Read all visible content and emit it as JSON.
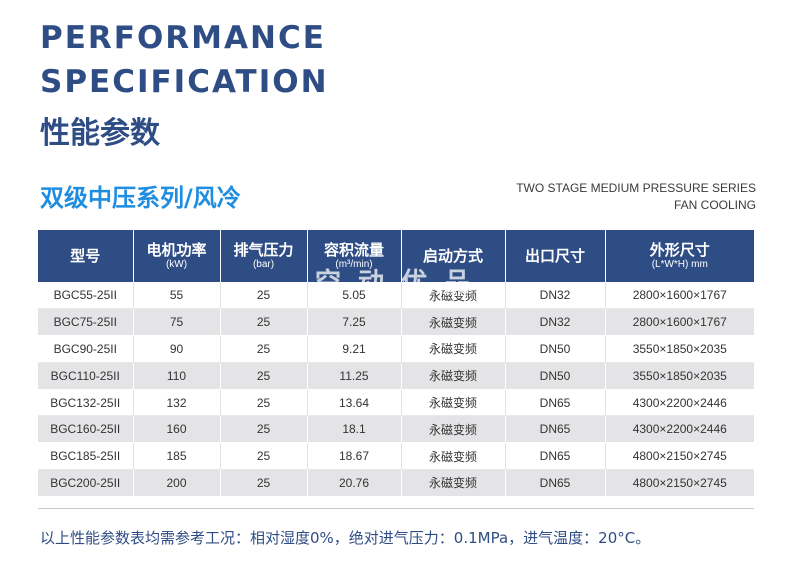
{
  "header": {
    "title_line1": "PERFORMANCE",
    "title_line2": "SPECIFICATION",
    "title_cn": "性能参数"
  },
  "series": {
    "title_cn": "双级中压系列/风冷",
    "en_line1": "TWO STAGE MEDIUM PRESSURE SERIES",
    "en_line2": "FAN COOLING"
  },
  "table": {
    "headers": [
      {
        "main": "型号",
        "sub": ""
      },
      {
        "main": "电机功率",
        "sub": "(kW)"
      },
      {
        "main": "排气压力",
        "sub": "(bar)"
      },
      {
        "main": "容积流量",
        "sub": "(m³/min)"
      },
      {
        "main": "启动方式",
        "sub": ""
      },
      {
        "main": "出口尺寸",
        "sub": ""
      },
      {
        "main": "外形尺寸",
        "sub": "(L*W*H) mm"
      }
    ],
    "rows": [
      [
        "BGC55-25II",
        "55",
        "25",
        "5.05",
        "永磁变频",
        "DN32",
        "2800×1600×1767"
      ],
      [
        "BGC75-25II",
        "75",
        "25",
        "7.25",
        "永磁变频",
        "DN32",
        "2800×1600×1767"
      ],
      [
        "BGC90-25II",
        "90",
        "25",
        "9.21",
        "永磁变频",
        "DN50",
        "3550×1850×2035"
      ],
      [
        "BGC110-25II",
        "110",
        "25",
        "11.25",
        "永磁变频",
        "DN50",
        "3550×1850×2035"
      ],
      [
        "BGC132-25II",
        "132",
        "25",
        "13.64",
        "永磁变频",
        "DN65",
        "4300×2200×2446"
      ],
      [
        "BGC160-25II",
        "160",
        "25",
        "18.1",
        "永磁变频",
        "DN65",
        "4300×2200×2446"
      ],
      [
        "BGC185-25II",
        "185",
        "25",
        "18.67",
        "永磁变频",
        "DN65",
        "4800×2150×2745"
      ],
      [
        "BGC200-25II",
        "200",
        "25",
        "20.76",
        "永磁变频",
        "DN65",
        "4800×2150×2745"
      ]
    ]
  },
  "watermark": "空 动 优 品",
  "footnote": "以上性能参数表均需参考工况：相对湿度0%，绝对进气压力：0.1MPa，进气温度：20°C。"
}
